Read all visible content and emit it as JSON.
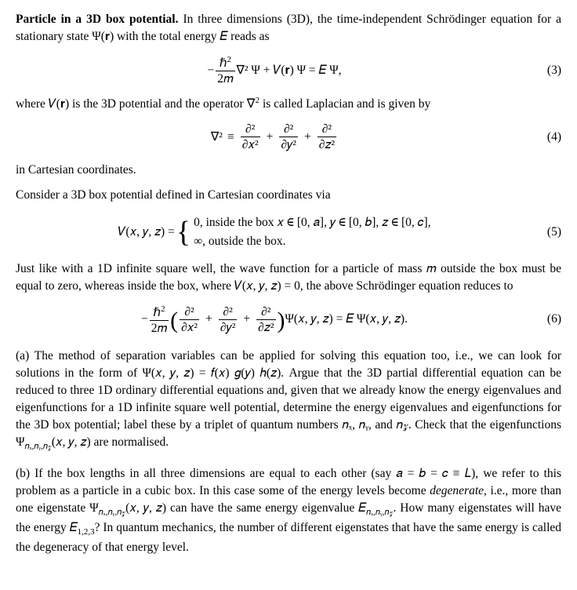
{
  "title_label": "Particle in a 3D box potential.",
  "para1": "In three dimensions (3D), the time-independent Schrödinger equation for a stationary state Ψ(𝐫) with the total energy 𝐸 reads as",
  "eq3_num": "(3)",
  "para2_a": "where 𝑉(𝐫) is the 3D potential and the operator ∇",
  "para2_b": " is called Laplacian and is given by",
  "eq4_num": "(4)",
  "para3": "in Cartesian coordinates.",
  "para4": "Consider a 3D box potential defined in Cartesian coordinates via",
  "eq5_line1": "0,  inside the box  𝑥 ∈ [0, 𝑎], 𝑦 ∈ [0, 𝑏], 𝑧 ∈ [0, 𝑐],",
  "eq5_line2": "∞,  outside the box.",
  "eq5_num": "(5)",
  "para5": "Just like with a 1D infinite square well, the wave function for a particle of mass 𝑚 outside the box must be equal to zero, whereas inside the box, where 𝑉(𝑥, 𝑦, 𝑧) = 0, the above Schrödinger equation reduces to",
  "eq6_num": "(6)",
  "qa_label": "(a)",
  "qa_text": " The method of separation variables can be applied for solving this equation too, i.e., we can look for solutions in the form of Ψ(𝑥, 𝑦, 𝑧) = 𝑓(𝑥) 𝑔(𝑦) ℎ(𝑧). Argue that the 3D partial differential equation can be reduced to three 1D ordinary differential equations and, given that we already know the energy eigenvalues and eigenfunctions for a 1D infinite square well potential, determine the energy eigenvalues and eigenfunctions for the 3D box potential; label these by a triplet of quantum numbers 𝑛ₓ, 𝑛ᵧ, and 𝑛𝓏. Check that the eigenfunctions Ψ",
  "qa_sub": "𝑛ₓ,𝑛ᵧ,𝑛𝓏",
  "qa_text2": "(𝑥, 𝑦, 𝑧) are normalised.",
  "qb_label": "(b)",
  "qb_text": " If the box lengths in all three dimensions are equal to each other (say 𝑎 = 𝑏 = 𝑐 ≡ 𝐿), we refer to this problem as a particle in a cubic box. In this case some of the energy levels become ",
  "qb_degenerate": "degenerate",
  "qb_text2": ", i.e., more than one eigenstate Ψ",
  "qb_sub1": "𝑛ₓ,𝑛ᵧ,𝑛𝓏",
  "qb_text3": "(𝑥, 𝑦, 𝑧) can have the same energy eigenvalue 𝐸",
  "qb_sub2": "𝑛ₓ,𝑛ᵧ,𝑛𝓏",
  "qb_text4": ". How many eigenstates will have the energy 𝐸",
  "qb_sub3": "1,2,3",
  "qb_text5": "? In quantum mechanics, the number of different eigenstates that have the same energy is called the degeneracy of that energy level.",
  "math": {
    "hbar2": "ℏ",
    "two_m": "2𝑚",
    "nabla2psi": "∇² Ψ + 𝑉(𝐫) Ψ = 𝐸 Ψ,",
    "nabla2": "∇²",
    "equiv": "≡",
    "d2": "∂²",
    "dx2": "∂𝑥²",
    "dy2": "∂𝑦²",
    "dz2": "∂𝑧²",
    "Vxyz": "𝑉(𝑥, 𝑦, 𝑧) = ",
    "psixyz": " Ψ(𝑥, 𝑦, 𝑧) = 𝐸 Ψ(𝑥, 𝑦, 𝑧).",
    "plus": "+",
    "minus": "−"
  }
}
